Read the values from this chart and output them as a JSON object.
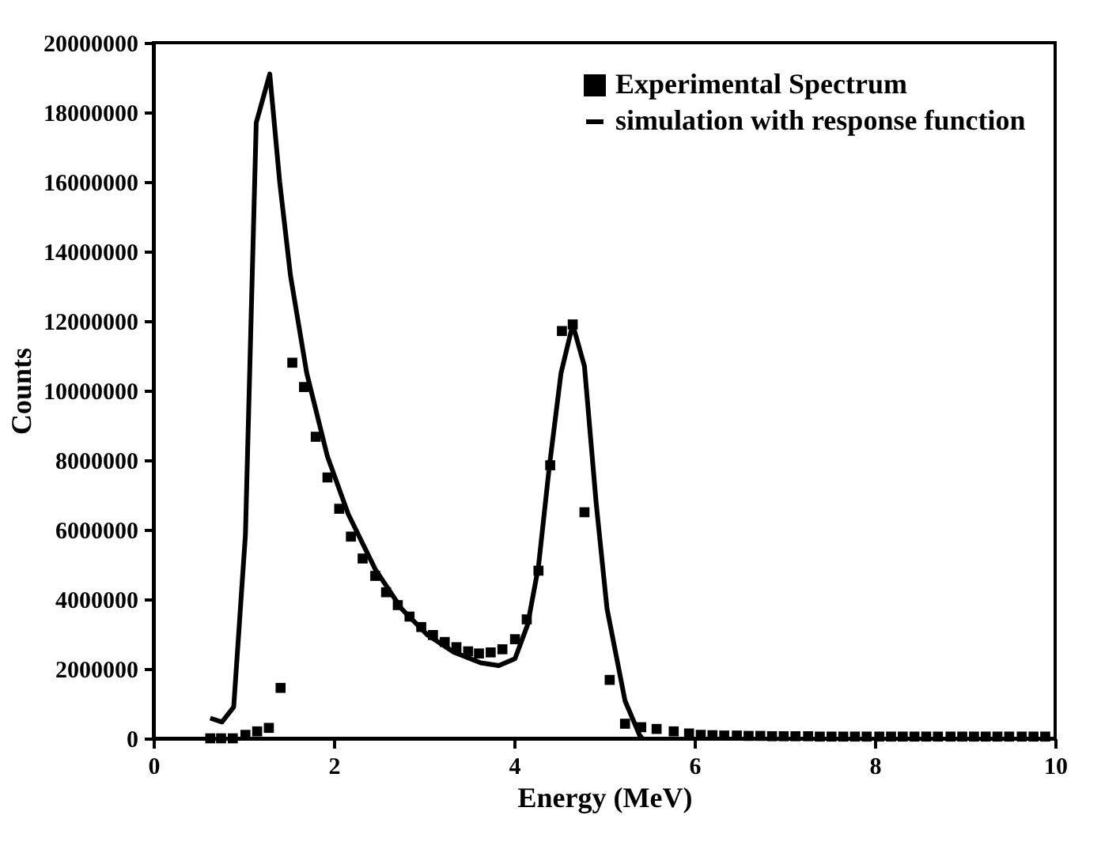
{
  "chart_data": {
    "type": "scatter",
    "xlabel": "Energy (MeV)",
    "ylabel": "Counts",
    "xlim": [
      0,
      10
    ],
    "xticks": [
      0,
      2,
      4,
      6,
      8,
      10
    ],
    "ylim": [
      0,
      20000000
    ],
    "yticks": [
      0,
      2000000,
      4000000,
      6000000,
      8000000,
      10000000,
      12000000,
      14000000,
      16000000,
      18000000,
      20000000
    ],
    "grid": false,
    "legend": "top right",
    "series": [
      {
        "name": "Experimental Spectrum",
        "marker": "square",
        "color": "#000000",
        "x": [
          0.63,
          0.75,
          0.88,
          1.02,
          1.15,
          1.28,
          1.41,
          1.54,
          1.67,
          1.8,
          1.93,
          2.06,
          2.19,
          2.32,
          2.46,
          2.58,
          2.71,
          2.84,
          2.97,
          3.1,
          3.23,
          3.36,
          3.49,
          3.61,
          3.74,
          3.87,
          4.01,
          4.14,
          4.27,
          4.4,
          4.53,
          4.65,
          4.78,
          5.06,
          5.23,
          5.41,
          5.58,
          5.77,
          5.94,
          6.07,
          6.2,
          6.33,
          6.47,
          6.6,
          6.73,
          6.86,
          6.99,
          7.12,
          7.26,
          7.39,
          7.52,
          7.65,
          7.78,
          7.91,
          8.05,
          8.18,
          8.31,
          8.44,
          8.57,
          8.7,
          8.84,
          8.97,
          9.1,
          9.23,
          9.36,
          9.49,
          9.63,
          9.76,
          9.89
        ],
        "values": [
          0,
          0,
          0,
          100000,
          200000,
          300000,
          1450000,
          10800000,
          10100000,
          8670000,
          7500000,
          6600000,
          5800000,
          5170000,
          4670000,
          4200000,
          3830000,
          3500000,
          3200000,
          2970000,
          2770000,
          2620000,
          2500000,
          2440000,
          2470000,
          2560000,
          2850000,
          3420000,
          4820000,
          7850000,
          11710000,
          11900000,
          6500000,
          1680000,
          420000,
          320000,
          270000,
          200000,
          140000,
          100000,
          90000,
          80000,
          80000,
          70000,
          70000,
          60000,
          60000,
          60000,
          60000,
          50000,
          50000,
          50000,
          50000,
          50000,
          50000,
          50000,
          50000,
          50000,
          50000,
          50000,
          50000,
          50000,
          50000,
          50000,
          50000,
          50000,
          50000,
          50000,
          50000
        ]
      },
      {
        "name": "simulation with response function",
        "type": "line",
        "marker": "none",
        "line_style": "solid",
        "color": "#000000",
        "x": [
          0.63,
          0.76,
          0.89,
          1.02,
          1.14,
          1.29,
          1.4,
          1.52,
          1.7,
          1.93,
          2.16,
          2.46,
          2.75,
          3.04,
          3.33,
          3.63,
          3.83,
          4.01,
          4.15,
          4.27,
          4.39,
          4.52,
          4.65,
          4.78,
          4.91,
          5.03,
          5.23,
          5.39,
          5.42
        ],
        "values": [
          580000,
          470000,
          900000,
          5850000,
          17700000,
          19100000,
          16000000,
          13300000,
          10500000,
          8100000,
          6450000,
          4860000,
          3730000,
          2970000,
          2480000,
          2170000,
          2090000,
          2290000,
          3270000,
          4940000,
          7800000,
          10500000,
          11900000,
          10700000,
          6760000,
          3730000,
          1080000,
          100000,
          0
        ]
      }
    ]
  }
}
